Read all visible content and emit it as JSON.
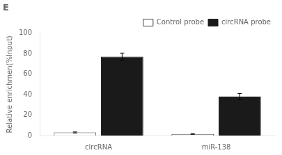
{
  "chart_data": {
    "type": "bar",
    "title": "E",
    "categories": [
      "circRNA",
      "miR-138"
    ],
    "series": [
      {
        "name": "Control probe",
        "color": "#ffffff",
        "values": [
          3.0,
          1.5
        ],
        "errors": [
          0.5,
          0.3
        ]
      },
      {
        "name": "circRNA probe",
        "color": "#1a1a1a",
        "values": [
          77.0,
          38.0
        ],
        "errors": [
          3.5,
          3.0
        ]
      }
    ],
    "ylabel": "Relative enrichmen(%Input)",
    "ylim": [
      0,
      100
    ],
    "yticks": [
      0,
      20,
      40,
      60,
      80,
      100
    ],
    "grid": false,
    "legend": "upper right"
  }
}
